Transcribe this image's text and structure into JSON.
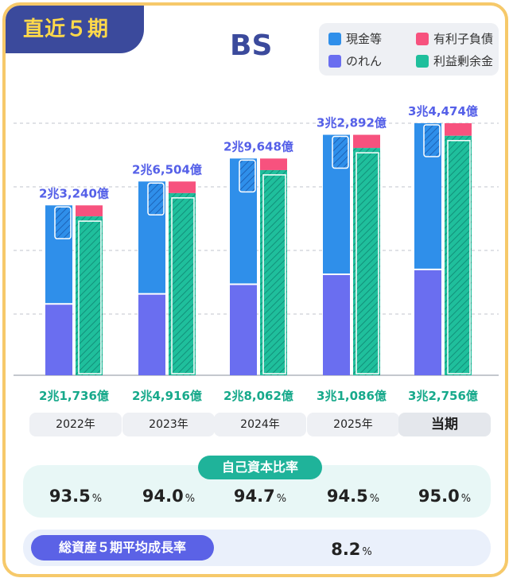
{
  "badge": "直近５期",
  "title": "BS",
  "legend": {
    "cash": "現金等",
    "debt": "有利子負債",
    "goodwill": "のれん",
    "retained": "利益剰余金"
  },
  "colors": {
    "cash": "#2f8fea",
    "debt": "#f7527e",
    "goodwill": "#6a6ef0",
    "retained": "#1fbf9c",
    "total_label": "#5560e8",
    "retained_label": "#17a98b"
  },
  "chart_data": {
    "type": "bar",
    "categories": [
      "2022年",
      "2023年",
      "2024年",
      "2025年",
      "当期"
    ],
    "total_assets": {
      "values": [
        23240,
        26504,
        29648,
        32892,
        34474
      ],
      "labels": [
        "2兆3,240億",
        "2兆6,504億",
        "2兆9,648億",
        "3兆2,892億",
        "3兆4,474億"
      ]
    },
    "retained_earnings": {
      "values": [
        21736,
        24916,
        28062,
        31086,
        32756
      ],
      "labels": [
        "2兆1,736億",
        "2兆4,916億",
        "2兆8,062億",
        "3兆1,086億",
        "3兆2,756億"
      ]
    },
    "grid": true
  },
  "equity_ratio": {
    "title": "自己資本比率",
    "values": [
      "93.5",
      "94.0",
      "94.7",
      "94.5",
      "95.0"
    ],
    "unit": "%"
  },
  "growth": {
    "title": "総資産５期平均成長率",
    "value": "8.2",
    "unit": "%"
  }
}
